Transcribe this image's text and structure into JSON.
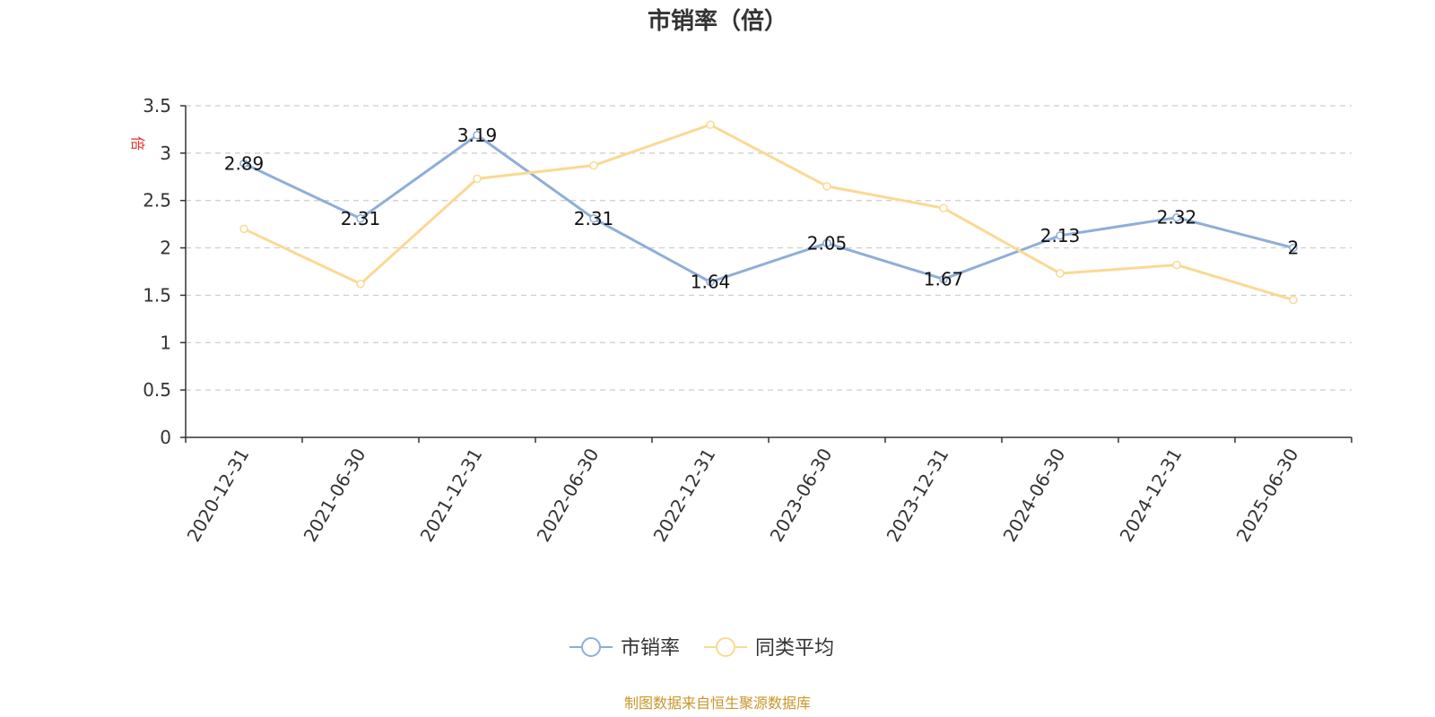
{
  "chart_data": {
    "type": "line",
    "title": "市销率（倍）",
    "unit_label": "倍",
    "categories": [
      "2020-12-31",
      "2021-06-30",
      "2021-12-31",
      "2022-06-30",
      "2022-12-31",
      "2023-06-30",
      "2023-12-31",
      "2024-06-30",
      "2024-12-31",
      "2025-06-30"
    ],
    "series": [
      {
        "name": "市销率",
        "color": "#8eaed8",
        "values": [
          2.89,
          2.31,
          3.19,
          2.31,
          1.64,
          2.05,
          1.67,
          2.13,
          2.32,
          2
        ],
        "data_labels": [
          "2.89",
          "2.31",
          "3.19",
          "2.31",
          "1.64",
          "2.05",
          "1.67",
          "2.13",
          "2.32",
          "2"
        ]
      },
      {
        "name": "同类平均",
        "color": "#fad994",
        "values": [
          2.2,
          1.62,
          2.73,
          2.87,
          3.3,
          2.65,
          2.42,
          1.73,
          1.82,
          1.45
        ]
      }
    ],
    "ylim": [
      0,
      3.5
    ],
    "yticks": [
      "0",
      "0.5",
      "1",
      "1.5",
      "2",
      "2.5",
      "3",
      "3.5"
    ],
    "grid": true,
    "legend_position": "bottom-center",
    "source_note": "制图数据来自恒生聚源数据库"
  }
}
